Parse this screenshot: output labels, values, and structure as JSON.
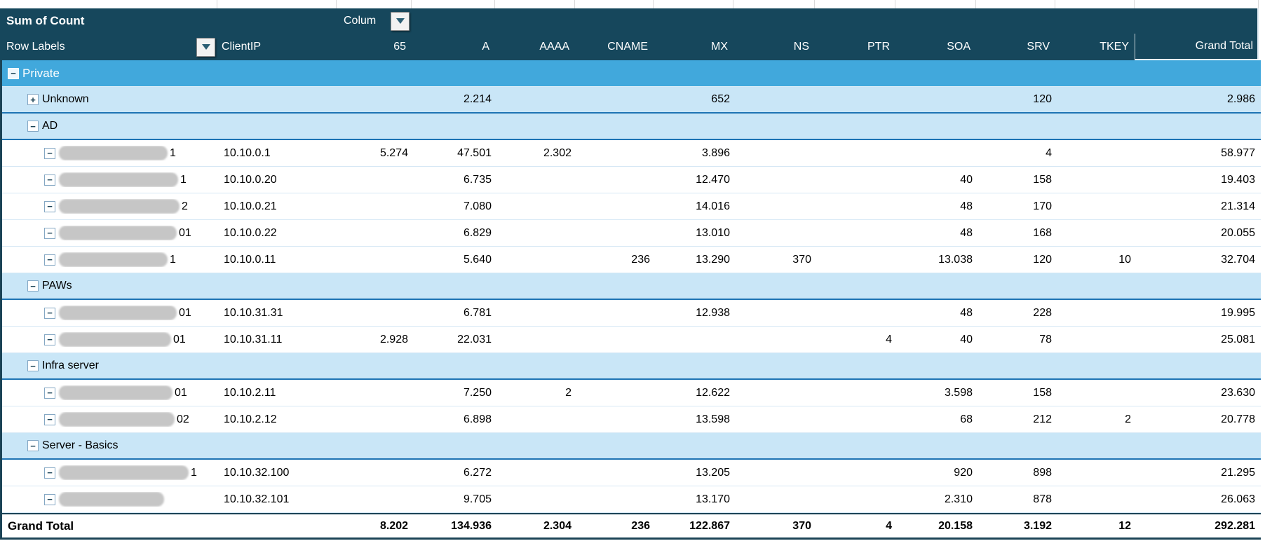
{
  "pivot": {
    "corner_label": "Sum of Count",
    "column_field_label": "Colum",
    "row_labels_header": "Row Labels",
    "clientip_header": "ClientIP",
    "value_columns": [
      "65",
      "A",
      "AAAA",
      "CNAME",
      "MX",
      "NS",
      "PTR",
      "SOA",
      "SRV",
      "TKEY",
      "Grand Total"
    ],
    "rows": [
      {
        "type": "group1",
        "label": "Private",
        "icon": "collapse",
        "clientip": "",
        "v": [
          "",
          "",
          "",
          "",
          "",
          "",
          "",
          "",
          "",
          "",
          ""
        ]
      },
      {
        "type": "group2",
        "label": "Unknown",
        "icon": "expand",
        "clientip": "",
        "v": [
          "",
          "2.214",
          "",
          "",
          "652",
          "",
          "",
          "",
          "120",
          "",
          "2.986"
        ]
      },
      {
        "type": "group2",
        "label": "AD",
        "icon": "collapse",
        "clientip": "",
        "v": [
          "",
          "",
          "",
          "",
          "",
          "",
          "",
          "",
          "",
          "",
          ""
        ]
      },
      {
        "type": "data",
        "label_masked": true,
        "mask_w": 155,
        "suffix": "1",
        "clientip": "10.10.0.1",
        "v": [
          "5.274",
          "47.501",
          "2.302",
          "",
          "3.896",
          "",
          "",
          "",
          "4",
          "",
          "58.977"
        ]
      },
      {
        "type": "data",
        "label_masked": true,
        "mask_w": 170,
        "suffix": "1",
        "clientip": "10.10.0.20",
        "v": [
          "",
          "6.735",
          "",
          "",
          "12.470",
          "",
          "",
          "40",
          "158",
          "",
          "19.403"
        ]
      },
      {
        "type": "data",
        "label_masked": true,
        "mask_w": 172,
        "suffix": "2",
        "clientip": "10.10.0.21",
        "v": [
          "",
          "7.080",
          "",
          "",
          "14.016",
          "",
          "",
          "48",
          "170",
          "",
          "21.314"
        ]
      },
      {
        "type": "data",
        "label_masked": true,
        "mask_w": 168,
        "suffix": "01",
        "clientip": "10.10.0.22",
        "v": [
          "",
          "6.829",
          "",
          "",
          "13.010",
          "",
          "",
          "48",
          "168",
          "",
          "20.055"
        ]
      },
      {
        "type": "data",
        "label_masked": true,
        "mask_w": 155,
        "suffix": "1",
        "clientip": "10.10.0.11",
        "v": [
          "",
          "5.640",
          "",
          "236",
          "13.290",
          "370",
          "",
          "13.038",
          "120",
          "10",
          "32.704"
        ]
      },
      {
        "type": "group2",
        "label": "PAWs",
        "icon": "collapse",
        "clientip": "",
        "v": [
          "",
          "",
          "",
          "",
          "",
          "",
          "",
          "",
          "",
          "",
          ""
        ]
      },
      {
        "type": "data",
        "label_masked": true,
        "mask_w": 168,
        "suffix": "01",
        "clientip": "10.10.31.31",
        "v": [
          "",
          "6.781",
          "",
          "",
          "12.938",
          "",
          "",
          "48",
          "228",
          "",
          "19.995"
        ]
      },
      {
        "type": "data",
        "label_masked": true,
        "mask_w": 160,
        "suffix": "01",
        "clientip": "10.10.31.11",
        "v": [
          "2.928",
          "22.031",
          "",
          "",
          "",
          "",
          "4",
          "40",
          "78",
          "",
          "25.081"
        ]
      },
      {
        "type": "group2",
        "label": "Infra server",
        "icon": "collapse",
        "clientip": "",
        "v": [
          "",
          "",
          "",
          "",
          "",
          "",
          "",
          "",
          "",
          "",
          ""
        ]
      },
      {
        "type": "data",
        "label_masked": true,
        "mask_w": 162,
        "suffix": "01",
        "clientip": "10.10.2.11",
        "v": [
          "",
          "7.250",
          "2",
          "",
          "12.622",
          "",
          "",
          "3.598",
          "158",
          "",
          "23.630"
        ]
      },
      {
        "type": "data",
        "label_masked": true,
        "mask_w": 165,
        "suffix": "02",
        "clientip": "10.10.2.12",
        "v": [
          "",
          "6.898",
          "",
          "",
          "13.598",
          "",
          "",
          "68",
          "212",
          "2",
          "20.778"
        ]
      },
      {
        "type": "group2",
        "label": "Server - Basics",
        "icon": "collapse",
        "clientip": "",
        "v": [
          "",
          "",
          "",
          "",
          "",
          "",
          "",
          "",
          "",
          "",
          ""
        ]
      },
      {
        "type": "data",
        "label_masked": true,
        "mask_w": 185,
        "suffix": "1",
        "clientip": "10.10.32.100",
        "v": [
          "",
          "6.272",
          "",
          "",
          "13.205",
          "",
          "",
          "920",
          "898",
          "",
          "21.295"
        ]
      },
      {
        "type": "data",
        "label_masked": true,
        "mask_w": 150,
        "suffix": "",
        "clientip": "10.10.32.101",
        "v": [
          "",
          "9.705",
          "",
          "",
          "13.170",
          "",
          "",
          "2.310",
          "878",
          "",
          "26.063"
        ]
      }
    ],
    "grand_total": {
      "label": "Grand Total",
      "v": [
        "8.202",
        "134.936",
        "2.304",
        "236",
        "122.867",
        "370",
        "4",
        "20.158",
        "3.192",
        "12",
        "292.281"
      ]
    }
  },
  "icons": {
    "collapse_glyph": "−",
    "expand_glyph": "+",
    "dropdown": "filter-dropdown-triangle"
  },
  "colors": {
    "header_bg": "#16475C",
    "group_level1_bg": "#41A8DC",
    "group_level2_bg": "#C9E6F7",
    "group_border": "#1E74B4",
    "row_separator": "#D6E8F5",
    "dark_border": "#1B4356",
    "header_text": "#FFFFFF",
    "body_text": "#000000"
  }
}
